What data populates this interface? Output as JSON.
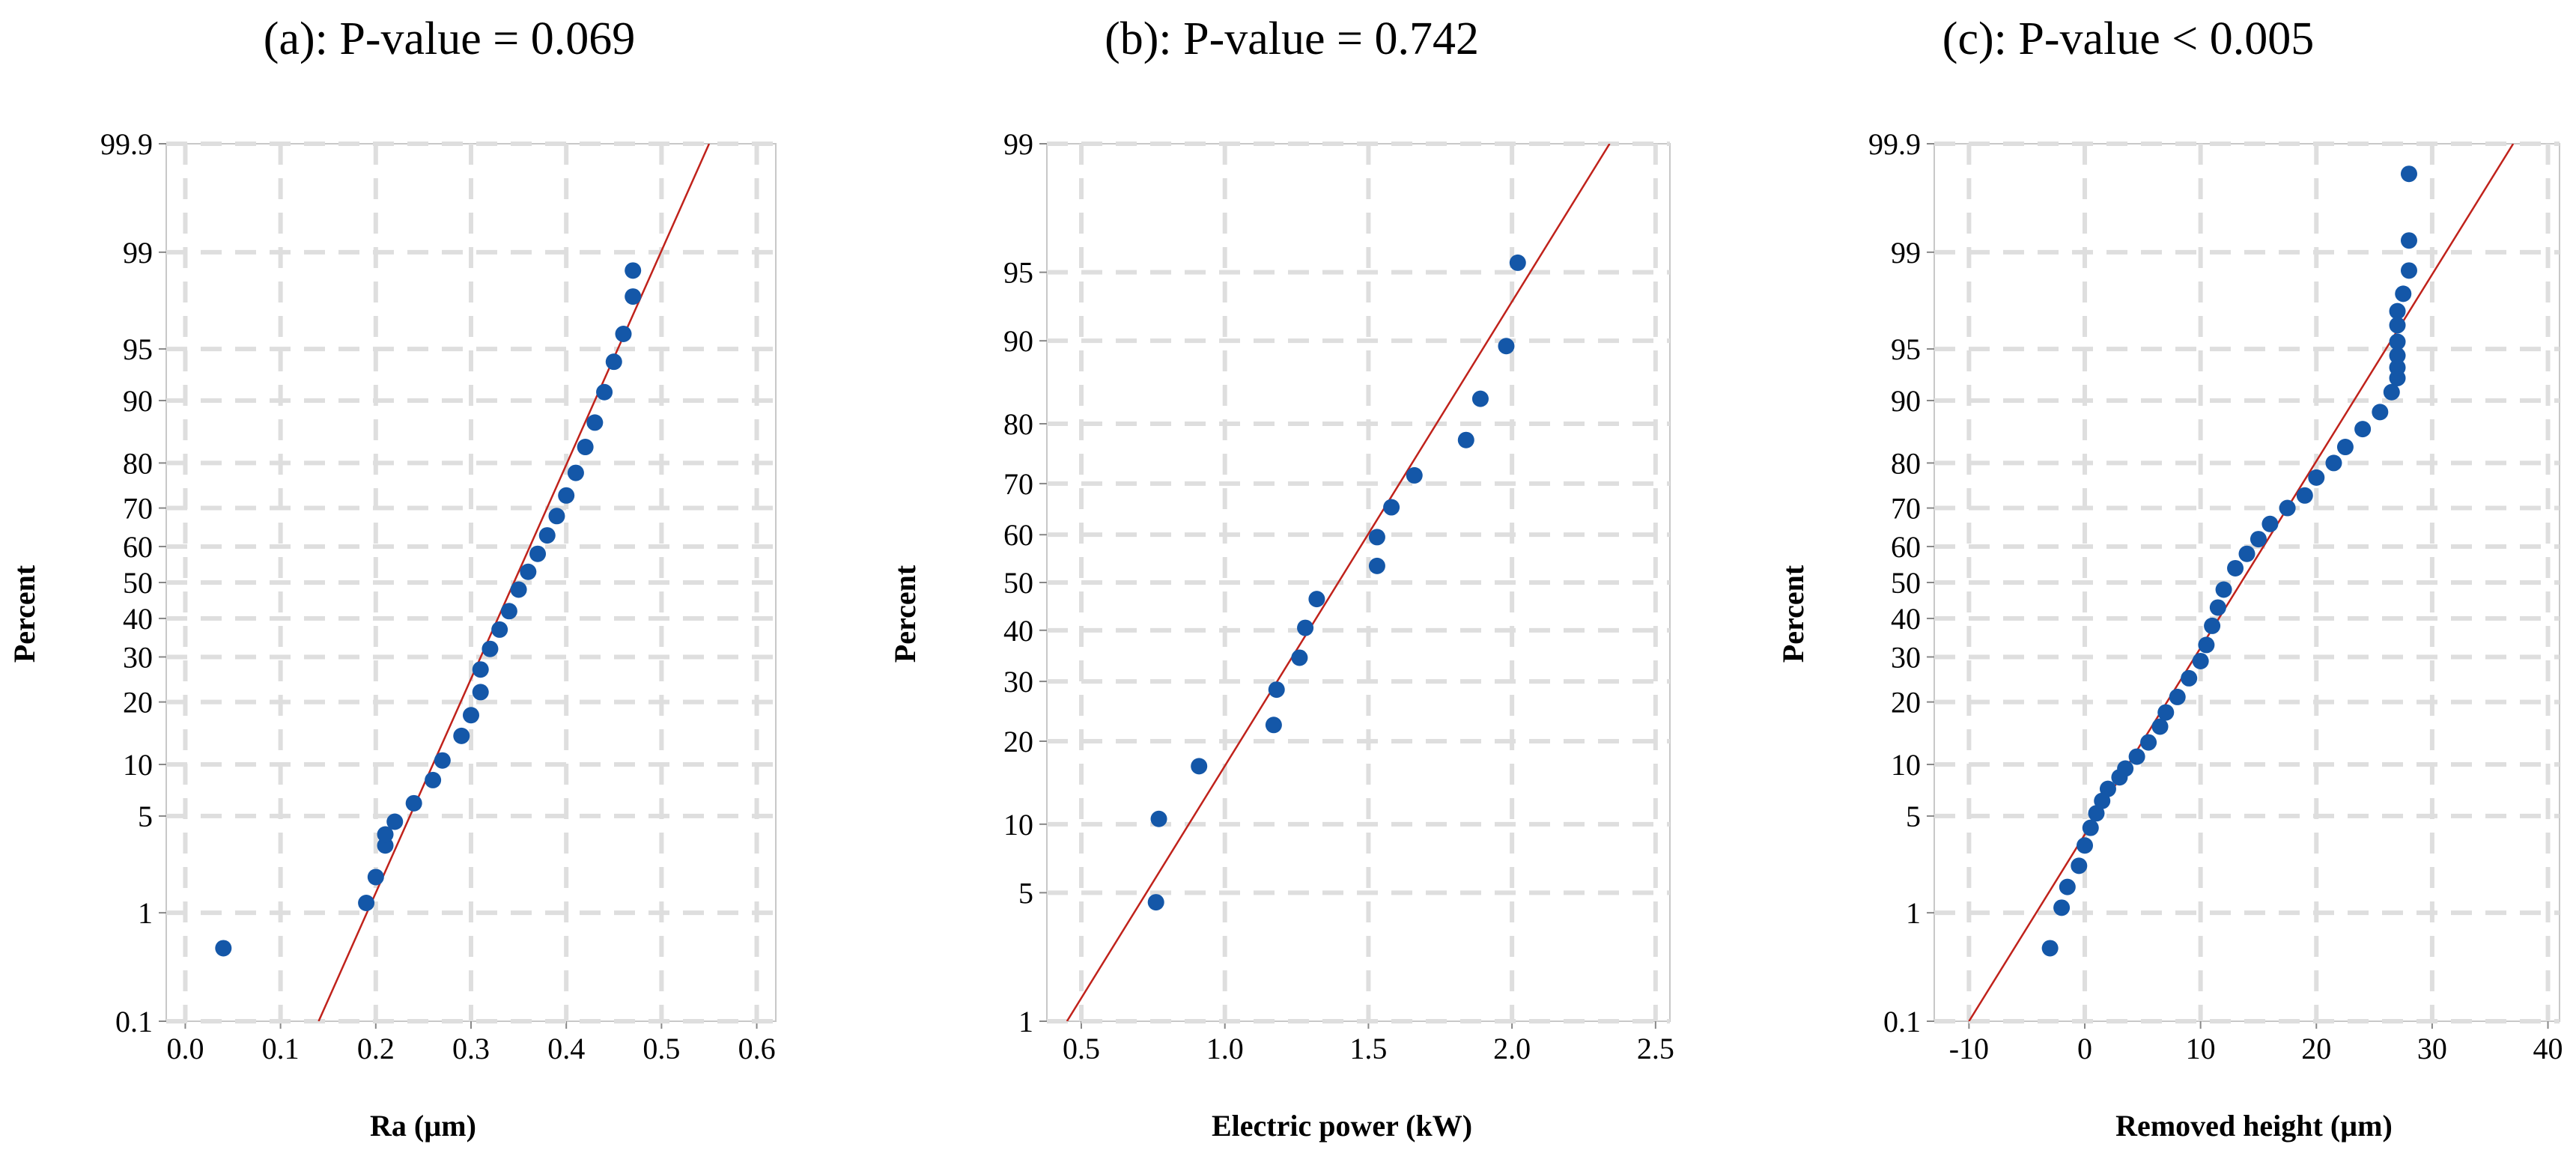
{
  "chart_data": [
    {
      "type": "scatter",
      "subtype": "normal-probability-plot",
      "title": "(a): P-value = 0.069",
      "xlabel": "Ra (µm)",
      "ylabel": "Percent",
      "xlim": [
        -0.02,
        0.62
      ],
      "xticks": [
        0.0,
        0.1,
        0.2,
        0.3,
        0.4,
        0.5,
        0.6
      ],
      "xtick_labels": [
        "0.0",
        "0.1",
        "0.2",
        "0.3",
        "0.4",
        "0.5",
        "0.6"
      ],
      "ylim_percent": [
        0.1,
        99.9
      ],
      "yticks": [
        0.1,
        1,
        5,
        10,
        20,
        30,
        40,
        50,
        60,
        70,
        80,
        90,
        95,
        99,
        99.9
      ],
      "ytick_labels": [
        "0.1",
        "1",
        "5",
        "10",
        "20",
        "30",
        "40",
        "50",
        "60",
        "70",
        "80",
        "90",
        "95",
        "99",
        "99.9"
      ],
      "fit_line": {
        "x_at_0_1": 0.14,
        "x_at_99_9": 0.55
      },
      "grid": true,
      "series": [
        {
          "name": "Ra",
          "x": [
            0.04,
            0.19,
            0.2,
            0.21,
            0.21,
            0.22,
            0.24,
            0.26,
            0.27,
            0.29,
            0.3,
            0.31,
            0.31,
            0.32,
            0.33,
            0.34,
            0.35,
            0.36,
            0.37,
            0.38,
            0.39,
            0.4,
            0.41,
            0.42,
            0.43,
            0.44,
            0.45,
            0.46,
            0.47,
            0.47
          ],
          "percent": [
            0.5,
            1.2,
            1.9,
            3.2,
            3.8,
            4.6,
            6.0,
            8.2,
            10.5,
            14.0,
            17.5,
            22.0,
            27.0,
            32.0,
            37.0,
            42.0,
            48.0,
            53.0,
            58.0,
            63.0,
            68.0,
            73.0,
            78.0,
            83.0,
            87.0,
            91.0,
            94.0,
            96.0,
            97.8,
            98.6
          ]
        }
      ]
    },
    {
      "type": "scatter",
      "subtype": "normal-probability-plot",
      "title": "(b): P-value = 0.742",
      "xlabel": "Electric power (kW)",
      "ylabel": "Percent",
      "xlim": [
        0.38,
        2.55
      ],
      "xticks": [
        0.5,
        1.0,
        1.5,
        2.0,
        2.5
      ],
      "xtick_labels": [
        "0.5",
        "1.0",
        "1.5",
        "2.0",
        "2.5"
      ],
      "ylim_percent": [
        1,
        99
      ],
      "yticks": [
        1,
        5,
        10,
        20,
        30,
        40,
        50,
        60,
        70,
        80,
        90,
        95,
        99
      ],
      "ytick_labels": [
        "1",
        "5",
        "10",
        "20",
        "30",
        "40",
        "50",
        "60",
        "70",
        "80",
        "90",
        "95",
        "99"
      ],
      "fit_line": {
        "x_at_1": 0.45,
        "x_at_99": 2.34
      },
      "grid": true,
      "series": [
        {
          "name": "Electric power",
          "x": [
            0.76,
            0.77,
            0.91,
            1.17,
            1.18,
            1.26,
            1.28,
            1.32,
            1.53,
            1.53,
            1.58,
            1.66,
            1.84,
            1.89,
            1.98,
            2.02
          ],
          "percent": [
            4.5,
            10.5,
            16.5,
            22.5,
            28.5,
            34.5,
            40.5,
            46.5,
            53.5,
            59.5,
            65.5,
            71.5,
            77.5,
            83.5,
            89.5,
            95.5
          ]
        }
      ]
    },
    {
      "type": "scatter",
      "subtype": "normal-probability-plot",
      "title": "(c): P-value < 0.005",
      "xlabel": "Removed height (µm)",
      "ylabel": "Percent",
      "xlim": [
        -13,
        41
      ],
      "xticks": [
        -10,
        0,
        10,
        20,
        30,
        40
      ],
      "xtick_labels": [
        "-10",
        "0",
        "10",
        "20",
        "30",
        "40"
      ],
      "ylim_percent": [
        0.1,
        99.9
      ],
      "yticks": [
        0.1,
        1,
        5,
        10,
        20,
        30,
        40,
        50,
        60,
        70,
        80,
        90,
        95,
        99,
        99.9
      ],
      "ytick_labels": [
        "0.1",
        "1",
        "5",
        "10",
        "20",
        "30",
        "40",
        "50",
        "60",
        "70",
        "80",
        "90",
        "95",
        "99",
        "99.9"
      ],
      "fit_line": {
        "x_at_0_1": -10,
        "x_at_99_9": 37
      },
      "grid": true,
      "series": [
        {
          "name": "Removed height",
          "x": [
            -3,
            -2,
            -1.5,
            -0.5,
            0,
            0.5,
            1,
            1.5,
            2,
            3,
            3.5,
            4.5,
            5.5,
            6.5,
            7,
            8,
            9,
            10,
            10.5,
            11,
            11.5,
            12,
            13,
            14,
            15,
            16,
            17.5,
            19,
            20,
            21.5,
            22.5,
            24,
            25.5,
            26.5,
            27,
            27,
            27,
            27,
            27,
            27,
            27.5,
            28,
            28,
            28
          ],
          "percent": [
            0.5,
            1.1,
            1.6,
            2.3,
            3.2,
            4.2,
            5.2,
            6.2,
            7.3,
            8.5,
            9.5,
            11.0,
            13.0,
            15.5,
            18.0,
            21.0,
            25.0,
            29.0,
            33.0,
            38.0,
            43.0,
            48.0,
            54.0,
            58.0,
            62.0,
            66.0,
            70.0,
            73.0,
            77.0,
            80.0,
            83.0,
            86.0,
            88.5,
            91.0,
            92.5,
            93.5,
            94.5,
            95.5,
            96.5,
            97.2,
            97.9,
            98.6,
            99.2,
            99.8
          ]
        }
      ]
    }
  ]
}
